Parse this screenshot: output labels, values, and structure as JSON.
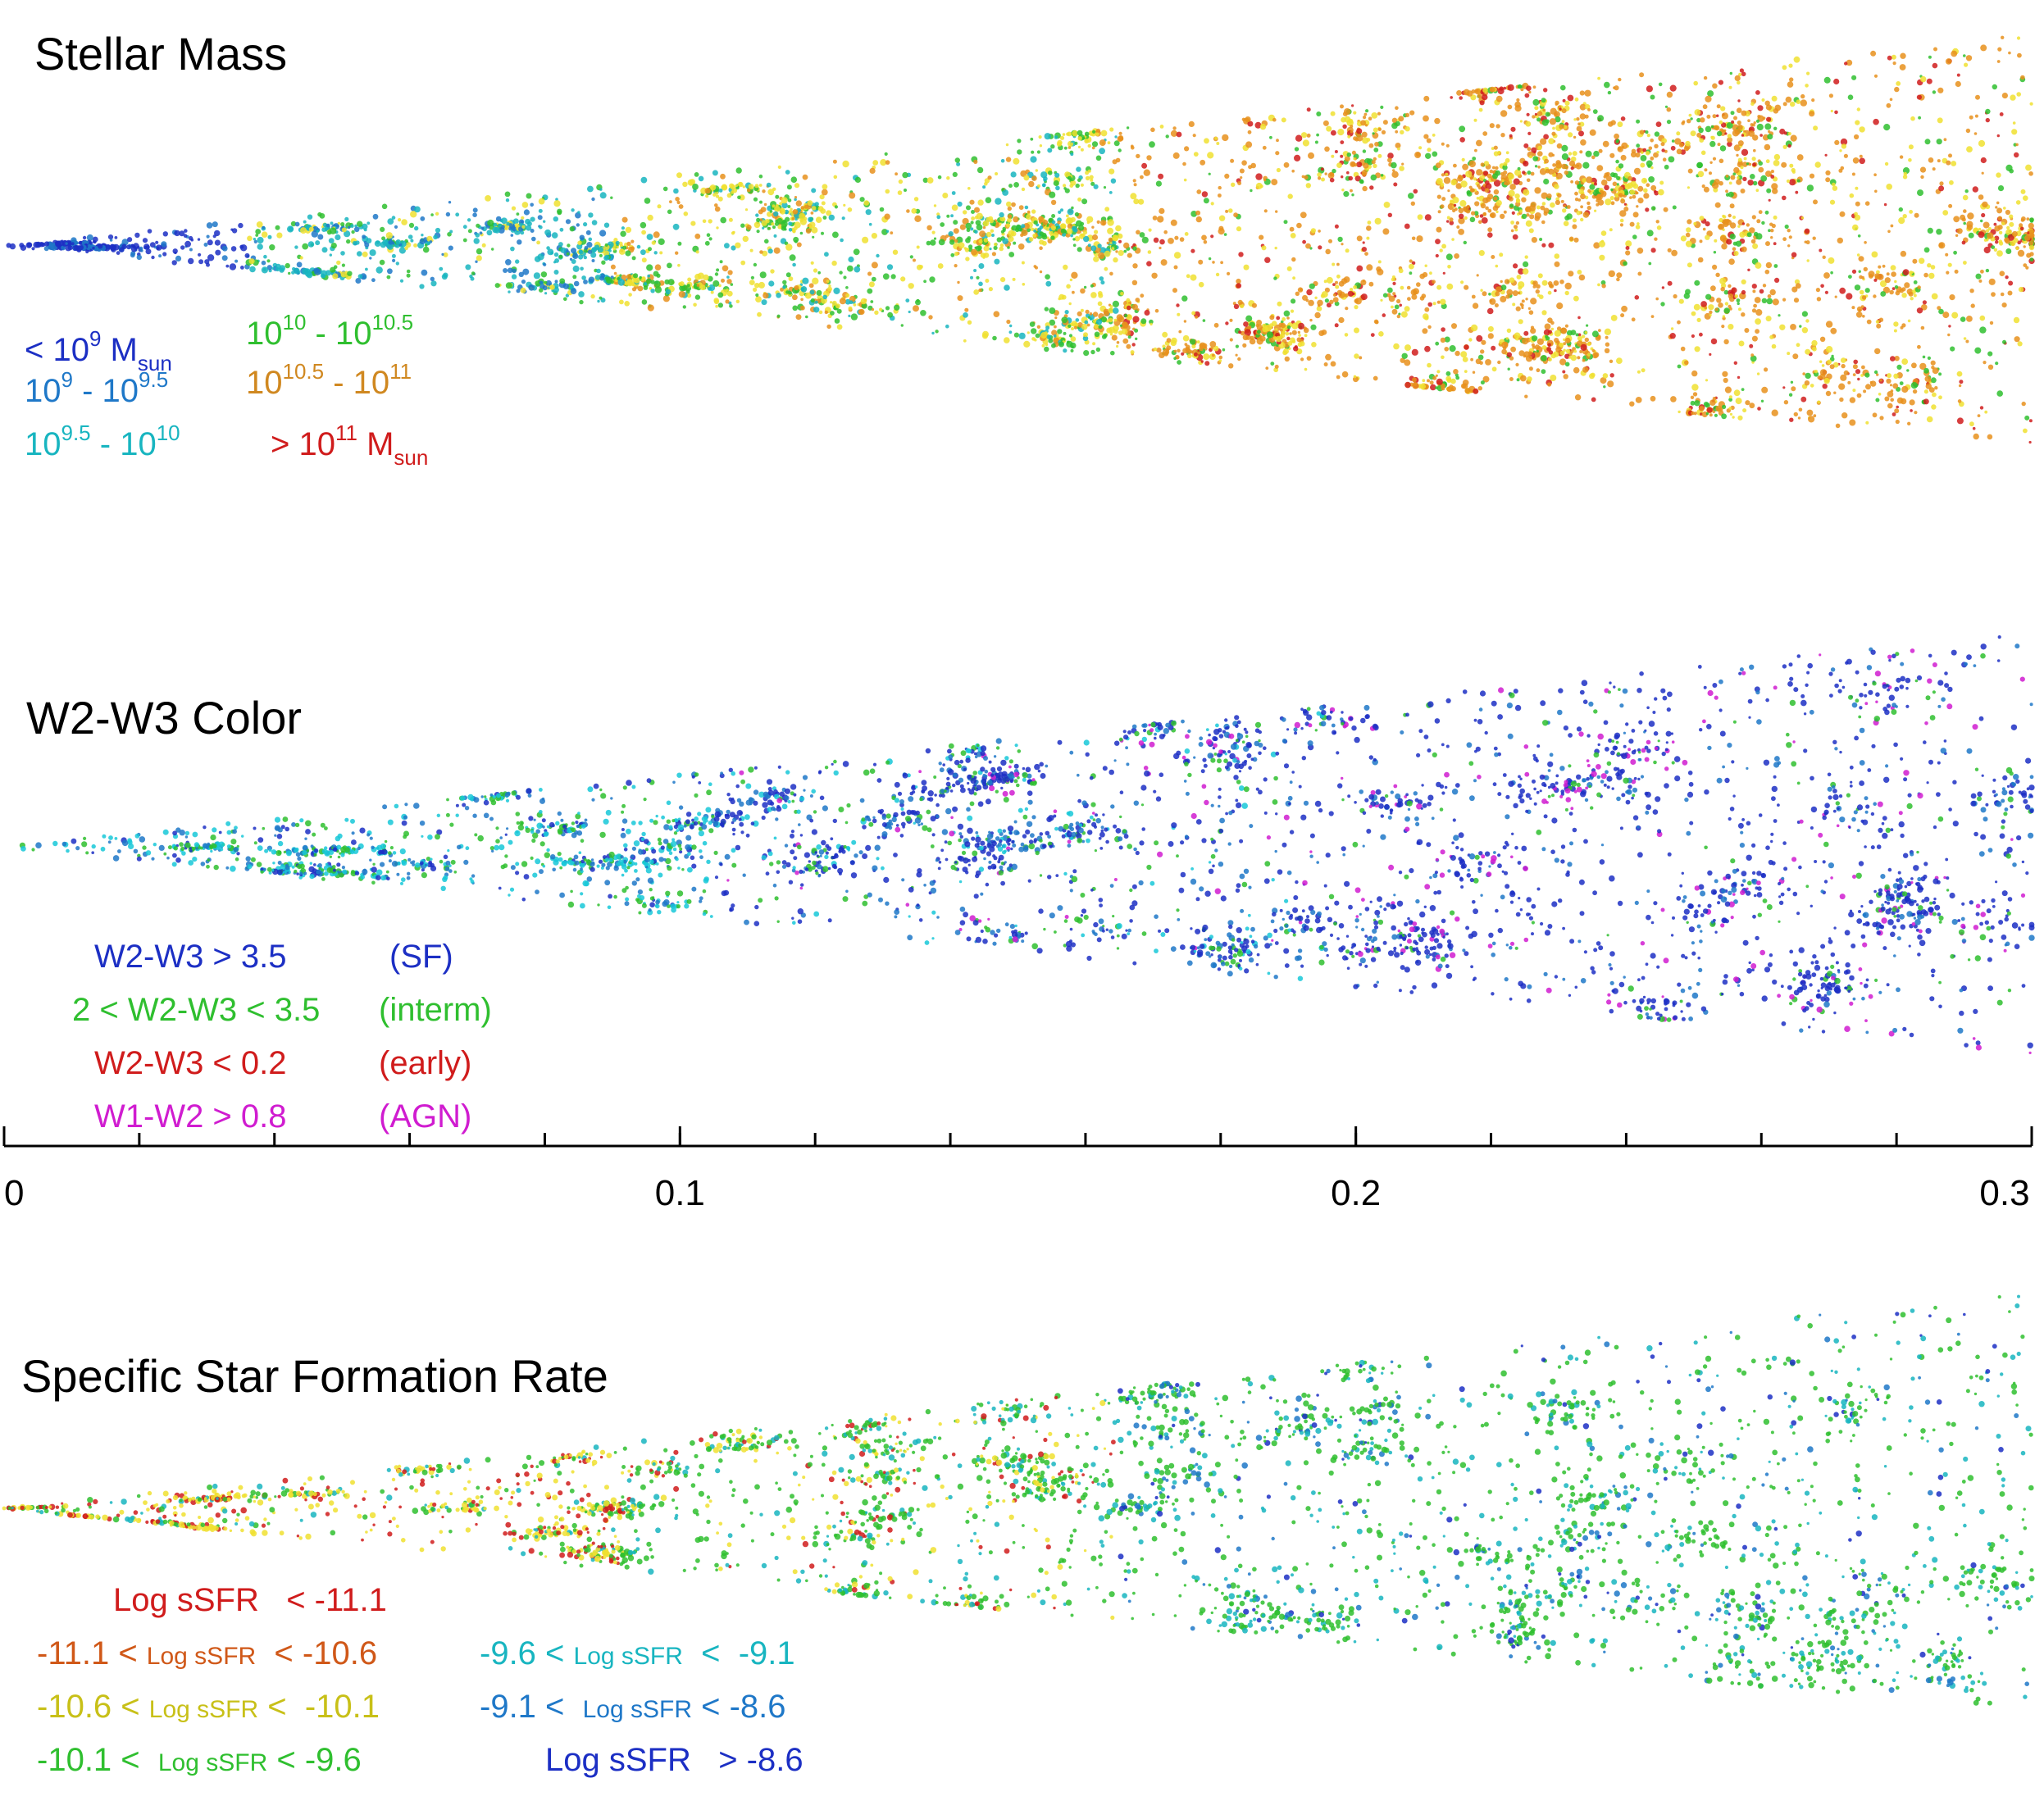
{
  "chart_data": [
    {
      "type": "scatter",
      "title": "Stellar Mass",
      "legend": [
        {
          "base": "< 10",
          "sup": "9",
          "tail": " M",
          "sub": "sun",
          "color": "#1c2fc4"
        },
        {
          "base": "10",
          "sup": "9",
          "tail": "   - 10",
          "sup2": "9.5",
          "color": "#1f78c8"
        },
        {
          "base": "10",
          "sup": "9.5",
          "tail": " - 10",
          "sup2": "10",
          "color": "#18b5c0"
        },
        {
          "base": "10",
          "sup": "10",
          "tail": "   - 10",
          "sup2": "10.5",
          "color": "#2fbf2f"
        },
        {
          "base": "10",
          "sup": "10.5",
          "tail": " - 10",
          "sup2": "11",
          "color": "#d08820"
        },
        {
          "base": "> 10",
          "sup": "11",
          "tail": " M",
          "sub": "sun",
          "color": "#d01c1c"
        }
      ],
      "series_colors": [
        "#1c2fc4",
        "#1f78c8",
        "#18b5c0",
        "#2fbf2f",
        "#f0e030",
        "#e8901c",
        "#d01c1c"
      ]
    },
    {
      "type": "scatter",
      "title": "W2-W3 Color",
      "legend": [
        {
          "label": "W2-W3 > 3.5",
          "tag": "(SF)",
          "color": "#1c2fc4"
        },
        {
          "label": "2 < W2-W3 < 3.5",
          "tag": "(interm)",
          "color": "#2fbf2f"
        },
        {
          "label": "W2-W3 < 0.2",
          "tag": "(early)",
          "color": "#d01c1c"
        },
        {
          "label": "W1-W2 > 0.8",
          "tag": "(AGN)",
          "color": "#d01cd0"
        }
      ],
      "series_colors": [
        "#1c2fc4",
        "#1f78c8",
        "#18c8d8",
        "#2fbf2f",
        "#d01cd0"
      ]
    },
    {
      "type": "scatter",
      "title": "Specific Star Formation Rate",
      "legend": [
        {
          "pre": "",
          "mid": "Log sSFR",
          "post": "   < -11.1",
          "color": "#d01c1c"
        },
        {
          "pre": "-11.1 < ",
          "mid": "Log sSFR",
          "post": "  < -10.6",
          "color": "#d05818"
        },
        {
          "pre": "-10.6 < ",
          "mid": "Log sSFR",
          "post": " <  -10.1",
          "color": "#c8c018"
        },
        {
          "pre": "-10.1 <  ",
          "mid": "Log sSFR",
          "post": " < -9.6",
          "color": "#2fbf2f"
        },
        {
          "pre": "-9.6 < ",
          "mid": "Log sSFR",
          "post": "  <  -9.1",
          "color": "#18b5c0"
        },
        {
          "pre": "-9.1 <  ",
          "mid": "Log sSFR",
          "post": " < -8.6",
          "color": "#1f78c8"
        },
        {
          "pre": "",
          "mid": "Log sSFR",
          "post": "   > -8.6",
          "color": "#1c2fc4"
        }
      ],
      "series_colors": [
        "#d01c1c",
        "#f0e030",
        "#2fbf2f",
        "#18b5c0",
        "#1f78c8",
        "#1c2fc4"
      ]
    }
  ],
  "axis": {
    "xlim": [
      0,
      0.3
    ],
    "major_ticks": [
      0,
      0.1,
      0.2,
      0.3
    ],
    "major_labels": [
      "0",
      "0.1",
      "0.2",
      "0.3"
    ],
    "minor_step": 0.02
  }
}
